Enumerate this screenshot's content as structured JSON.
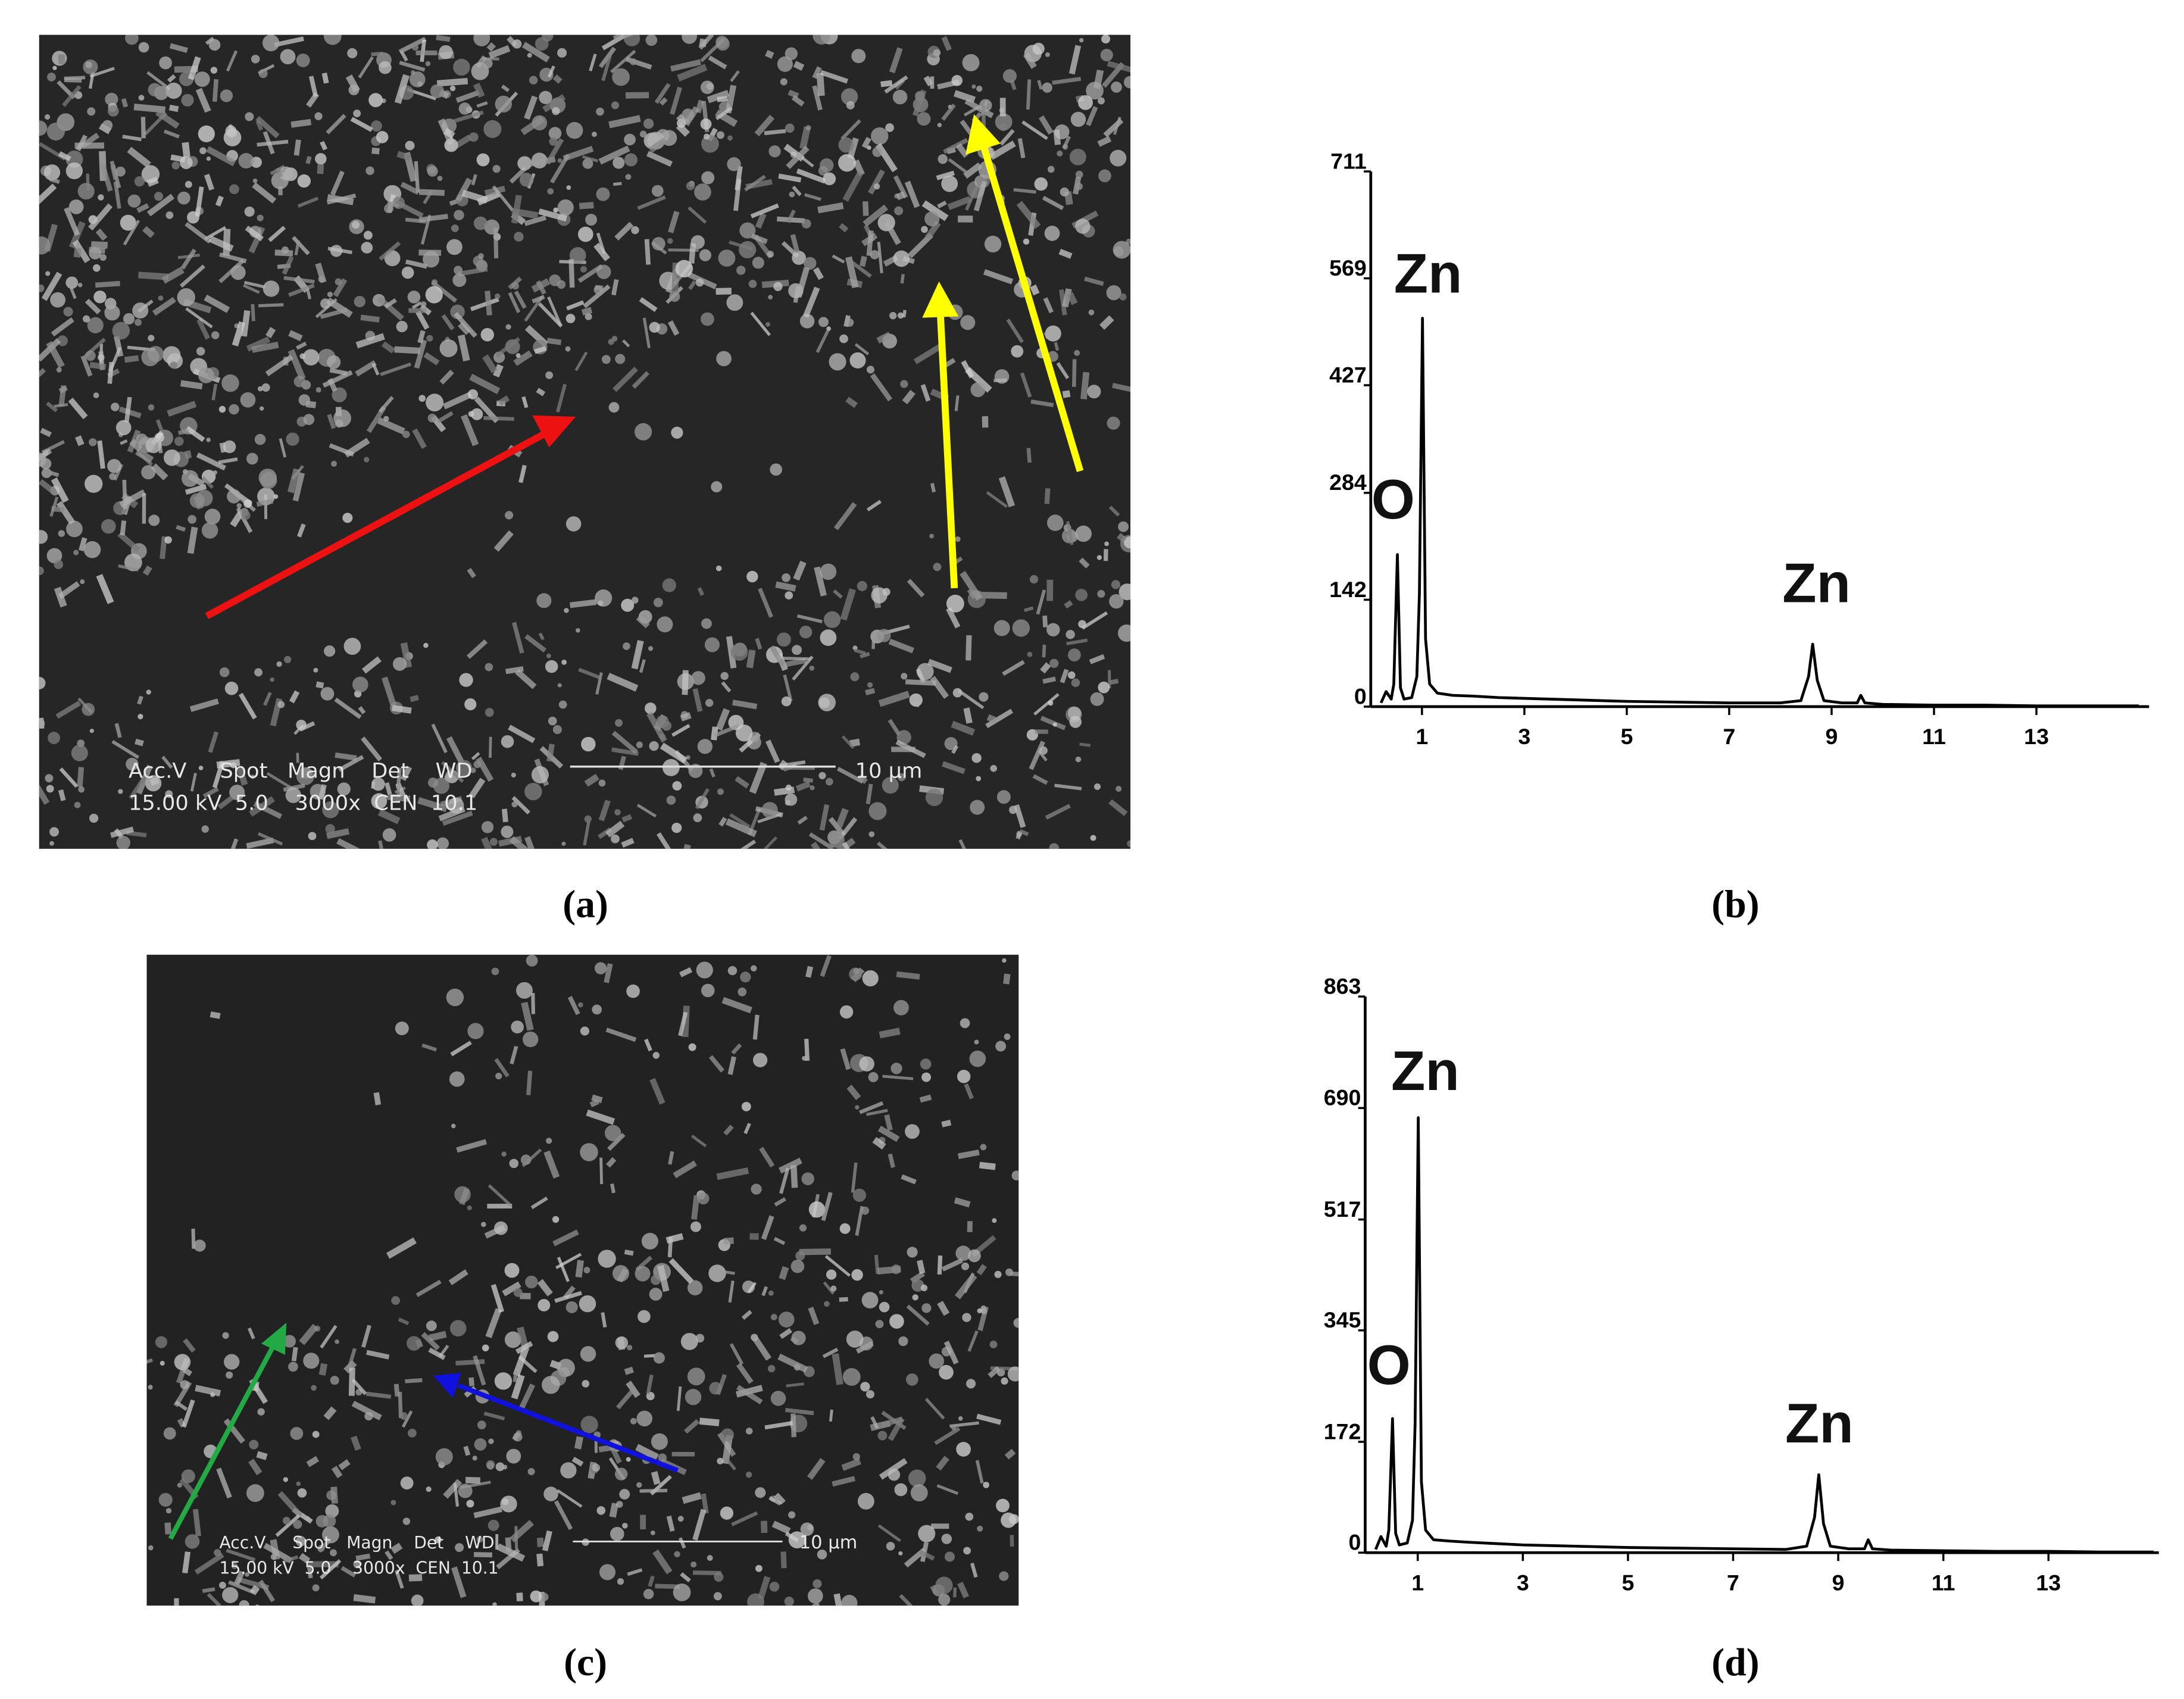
{
  "panel_labels": [
    "(a)",
    "(b)",
    "(c)",
    "(d)"
  ],
  "sem_images": [
    {
      "header": "Acc.V     Spot   Magn    Det    WD",
      "settings": "15.00 kV  5.0    3000x  CEN  10.1",
      "scale_bar": "10 μm"
    },
    {
      "header": "Acc.V     Spot   Magn    Det    WD",
      "settings": "15.00 kV  5.0    3000x  CEN  10.1",
      "scale_bar": "10 μm"
    }
  ],
  "chart_data": [
    {
      "type": "line",
      "x": [
        0.2,
        0.3,
        0.4,
        0.45,
        0.52,
        0.58,
        0.65,
        0.8,
        0.9,
        0.95,
        1.01,
        1.07,
        1.15,
        1.3,
        1.6,
        2,
        2.5,
        3,
        3.5,
        4,
        5,
        6,
        7,
        8,
        8.4,
        8.55,
        8.63,
        8.72,
        8.85,
        9.2,
        9.5,
        9.57,
        9.65,
        10,
        11,
        12,
        13,
        14,
        15
      ],
      "series": [
        {
          "color": "#000000",
          "values": [
            5,
            20,
            10,
            30,
            202,
            25,
            10,
            12,
            40,
            150,
            516,
            90,
            30,
            18,
            15,
            14,
            12,
            11,
            10,
            9,
            7,
            6,
            5,
            5,
            8,
            40,
            83,
            35,
            8,
            5,
            5,
            15,
            5,
            3,
            2,
            2,
            1,
            1,
            1
          ]
        }
      ],
      "xlim": [
        0,
        15.2
      ],
      "xticks": [
        1,
        3,
        5,
        7,
        9,
        11,
        13
      ],
      "ylim": [
        0,
        711
      ],
      "yticks": [
        0,
        142,
        284,
        427,
        569,
        711
      ],
      "annotations": [
        "O",
        "Zn",
        "Zn"
      ]
    },
    {
      "type": "line",
      "x": [
        0.2,
        0.3,
        0.4,
        0.45,
        0.52,
        0.58,
        0.65,
        0.8,
        0.9,
        0.95,
        1.01,
        1.07,
        1.15,
        1.3,
        1.6,
        2,
        2.5,
        3,
        3.5,
        4,
        5,
        6,
        7,
        8,
        8.4,
        8.55,
        8.63,
        8.72,
        8.85,
        9.2,
        9.5,
        9.57,
        9.65,
        10,
        11,
        12,
        13,
        14,
        15
      ],
      "series": [
        {
          "color": "#000000",
          "values": [
            5,
            25,
            10,
            35,
            208,
            30,
            12,
            15,
            50,
            200,
            675,
            110,
            35,
            20,
            18,
            16,
            14,
            12,
            11,
            10,
            8,
            7,
            6,
            5,
            10,
            55,
            121,
            45,
            10,
            6,
            6,
            20,
            6,
            4,
            3,
            2,
            2,
            1,
            1
          ]
        }
      ],
      "xlim": [
        0,
        15.1
      ],
      "xticks": [
        1,
        3,
        5,
        7,
        9,
        11,
        13
      ],
      "ylim": [
        0,
        863
      ],
      "yticks": [
        0,
        172,
        345,
        517,
        690,
        863
      ],
      "annotations": [
        "O",
        "Zn",
        "Zn"
      ]
    }
  ]
}
